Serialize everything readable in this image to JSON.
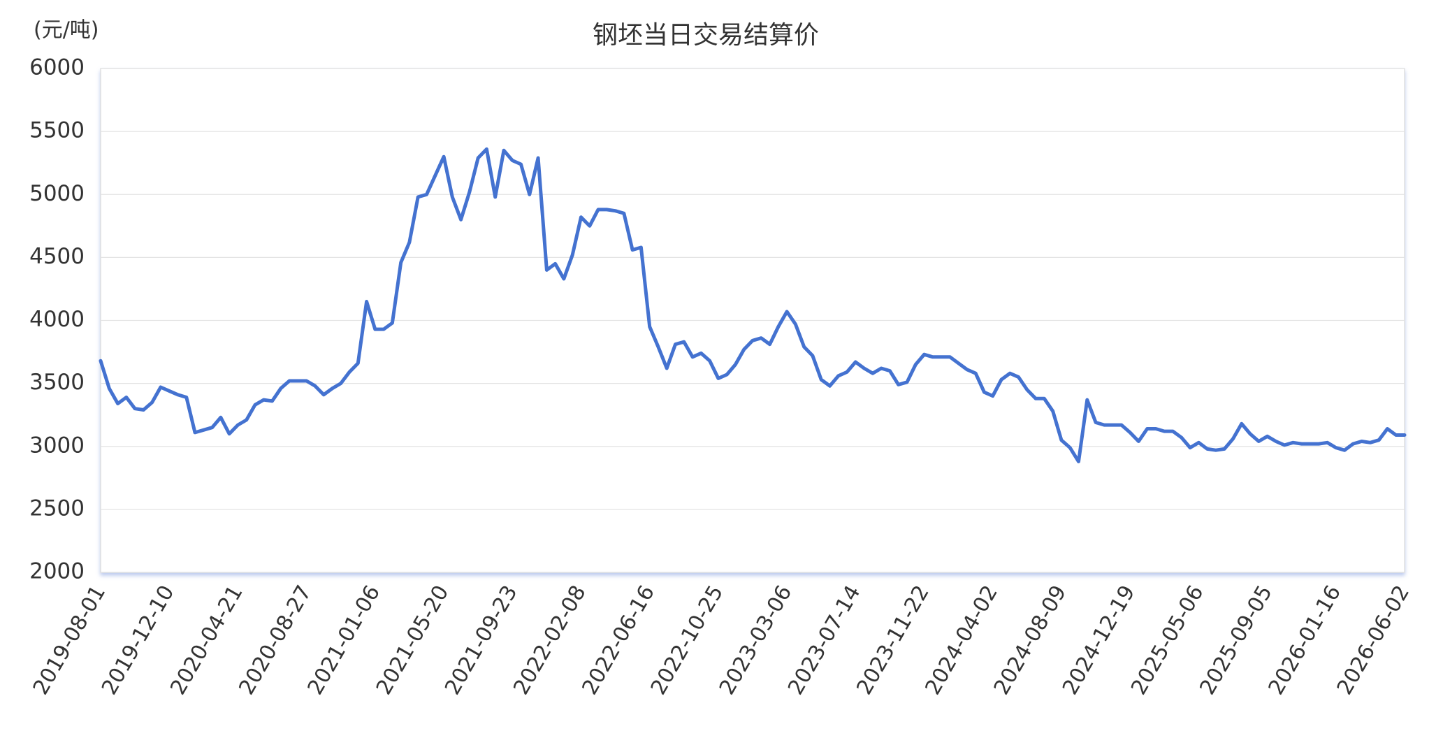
{
  "chart_data": {
    "type": "line",
    "title": "钢坯当日交易结算价",
    "y_label": "(元/吨)",
    "categories": [
      "2019-08-01",
      null,
      null,
      null,
      null,
      null,
      null,
      null,
      "2019-12-10",
      null,
      null,
      null,
      null,
      null,
      null,
      null,
      "2020-04-21",
      null,
      null,
      null,
      null,
      null,
      null,
      null,
      "2020-08-27",
      null,
      null,
      null,
      null,
      null,
      null,
      null,
      "2021-01-06",
      null,
      null,
      null,
      null,
      null,
      null,
      null,
      "2021-05-20",
      null,
      null,
      null,
      null,
      null,
      null,
      null,
      "2021-09-23",
      null,
      null,
      null,
      null,
      null,
      null,
      null,
      "2022-02-08",
      null,
      null,
      null,
      null,
      null,
      null,
      null,
      "2022-06-16",
      null,
      null,
      null,
      null,
      null,
      null,
      null,
      "2022-10-25",
      null,
      null,
      null,
      null,
      null,
      null,
      null,
      "2023-03-06",
      null,
      null,
      null,
      null,
      null,
      null,
      null,
      "2023-07-14",
      null,
      null,
      null,
      null,
      null,
      null,
      null,
      "2023-11-22",
      null,
      null,
      null,
      null,
      null,
      null,
      null,
      "2024-04-02",
      null,
      null,
      null,
      null,
      null,
      null,
      null,
      "2024-08-09",
      null,
      null,
      null,
      null,
      null,
      null,
      null,
      "2024-12-19",
      null,
      null,
      null,
      null,
      null,
      null,
      null,
      "2025-05-06",
      null,
      null,
      null,
      null,
      null,
      null,
      null,
      "2025-09-05",
      null,
      null,
      null,
      null,
      null,
      null,
      null,
      "2026-01-16",
      null,
      null,
      null,
      null,
      null,
      null,
      null,
      "2026-06-02"
    ],
    "values": [
      3680,
      3460,
      3340,
      3390,
      3300,
      3290,
      3350,
      3470,
      3440,
      3410,
      3390,
      3110,
      3130,
      3150,
      3230,
      3100,
      3170,
      3210,
      3330,
      3370,
      3360,
      3460,
      3520,
      3520,
      3520,
      3480,
      3410,
      3460,
      3500,
      3590,
      3660,
      4150,
      3930,
      3930,
      3980,
      4460,
      4620,
      4980,
      5000,
      5150,
      5300,
      4980,
      4800,
      5020,
      5290,
      5360,
      4980,
      5350,
      5270,
      5240,
      5000,
      5290,
      4400,
      4450,
      4330,
      4520,
      4820,
      4750,
      4880,
      4880,
      4870,
      4850,
      4560,
      4580,
      3950,
      3790,
      3620,
      3810,
      3830,
      3710,
      3740,
      3680,
      3540,
      3570,
      3650,
      3770,
      3840,
      3860,
      3810,
      3950,
      4070,
      3970,
      3790,
      3720,
      3530,
      3480,
      3560,
      3590,
      3670,
      3620,
      3580,
      3620,
      3600,
      3490,
      3510,
      3650,
      3730,
      3710,
      3710,
      3710,
      3660,
      3610,
      3580,
      3430,
      3400,
      3530,
      3580,
      3550,
      3450,
      3380,
      3380,
      3280,
      3050,
      2990,
      2880,
      3370,
      3190,
      3170,
      3170,
      3170,
      3110,
      3040,
      3140,
      3140,
      3120,
      3120,
      3070,
      2990,
      3030,
      2980,
      2970,
      2980,
      3060,
      3180,
      3100,
      3040,
      3080,
      3040,
      3010,
      3030,
      3020,
      3020,
      3020,
      3030,
      2990,
      2970,
      3020,
      3040,
      3030,
      3050,
      3140,
      3090,
      3090
    ],
    "color": "#4472d0",
    "ylim": [
      2000,
      6000
    ],
    "yticks": [
      2000,
      2500,
      3000,
      3500,
      4000,
      4500,
      5000,
      5500,
      6000
    ],
    "grid": true
  }
}
